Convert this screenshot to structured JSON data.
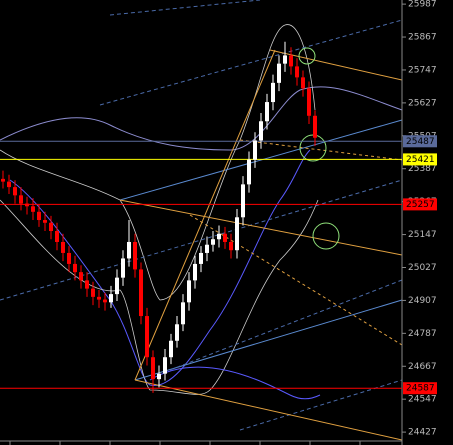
{
  "chart_data": {
    "type": "candlestick",
    "up_color": "#ffffff",
    "down_color": "#ff0000",
    "open": [
      25350,
      25340,
      25320,
      25290,
      25260,
      25250,
      25230,
      25200,
      25190,
      25160,
      25120,
      25080,
      25040,
      25010,
      24980,
      24950,
      24920,
      24910,
      24900,
      24930,
      24990,
      25060,
      25120,
      25020,
      24850,
      24700,
      24620,
      24640,
      24700,
      24760,
      24820,
      24900,
      24980,
      25040,
      25080,
      25110,
      25130,
      25150,
      25120,
      25090,
      25210,
      25330,
      25420,
      25490,
      25560,
      25630,
      25700,
      25770,
      25800,
      25760,
      25720,
      25680,
      25580
    ],
    "high": [
      25380,
      25365,
      25345,
      25320,
      25285,
      25280,
      25255,
      25230,
      25215,
      25190,
      25150,
      25105,
      25070,
      25035,
      25010,
      24975,
      24945,
      24935,
      24960,
      25020,
      25090,
      25200,
      25150,
      25045,
      24880,
      24725,
      24670,
      24730,
      24785,
      24850,
      24930,
      25010,
      25070,
      25105,
      25140,
      25160,
      25180,
      25175,
      25150,
      25240,
      25360,
      25450,
      25520,
      25590,
      25660,
      25730,
      25800,
      25850,
      25830,
      25790,
      25745,
      25705,
      25600
    ],
    "low": [
      25315,
      25295,
      25260,
      25235,
      25220,
      25200,
      25175,
      25160,
      25130,
      25090,
      25050,
      25010,
      24980,
      24950,
      24920,
      24890,
      24880,
      24870,
      24880,
      24905,
      24960,
      25030,
      24990,
      24820,
      24670,
      24570,
      24590,
      24615,
      24675,
      24735,
      24795,
      24870,
      24950,
      25010,
      25050,
      25085,
      25100,
      25095,
      25060,
      25060,
      25180,
      25300,
      25390,
      25460,
      25530,
      25600,
      25670,
      25740,
      25730,
      25690,
      25650,
      25550,
      25470
    ],
    "close": [
      25340,
      25320,
      25290,
      25260,
      25250,
      25230,
      25200,
      25190,
      25160,
      25120,
      25080,
      25040,
      25010,
      24980,
      24950,
      24920,
      24910,
      24900,
      24930,
      24990,
      25060,
      25120,
      25020,
      24850,
      24700,
      24620,
      24640,
      24700,
      24760,
      24820,
      24900,
      24980,
      25040,
      25080,
      25110,
      25130,
      25150,
      25120,
      25090,
      25210,
      25330,
      25420,
      25490,
      25560,
      25630,
      25700,
      25770,
      25800,
      25760,
      25720,
      25680,
      25580,
      25500
    ],
    "ylim": [
      24380,
      26002
    ],
    "yticks": [
      25987,
      25867,
      25747,
      25627,
      25507,
      25387,
      25267,
      25147,
      25027,
      24907,
      24787,
      24667,
      24547,
      24427
    ],
    "levels": [
      {
        "value": 25487,
        "color": "#5a6a9a"
      },
      {
        "value": 25421,
        "color": "#ffff00"
      },
      {
        "value": 25257,
        "color": "#ff0000"
      },
      {
        "value": 24587,
        "color": "#ff0000"
      }
    ]
  }
}
